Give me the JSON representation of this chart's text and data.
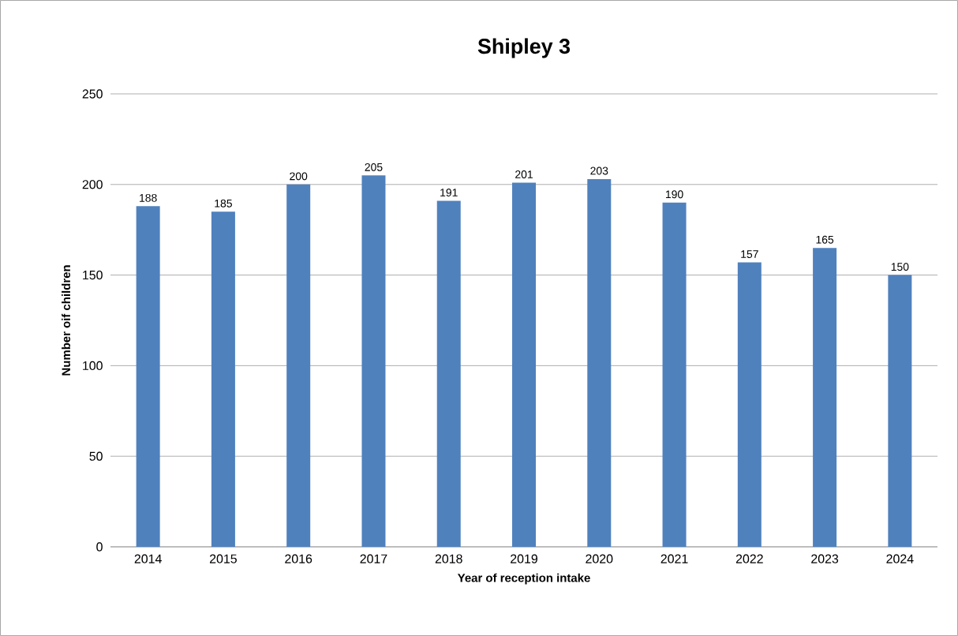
{
  "chart_data": {
    "type": "bar",
    "title": "Shipley 3",
    "xlabel": "Year of reception intake",
    "ylabel": "Number oif children",
    "categories": [
      "2014",
      "2015",
      "2016",
      "2017",
      "2018",
      "2019",
      "2020",
      "2021",
      "2022",
      "2023",
      "2024"
    ],
    "values": [
      188,
      185,
      200,
      205,
      191,
      201,
      203,
      190,
      157,
      165,
      150
    ],
    "color": "#4f81bd",
    "data_labels": true,
    "ylim": [
      0,
      250
    ],
    "yticks": [
      0,
      50,
      100,
      150,
      200,
      250
    ],
    "grid": "y"
  }
}
